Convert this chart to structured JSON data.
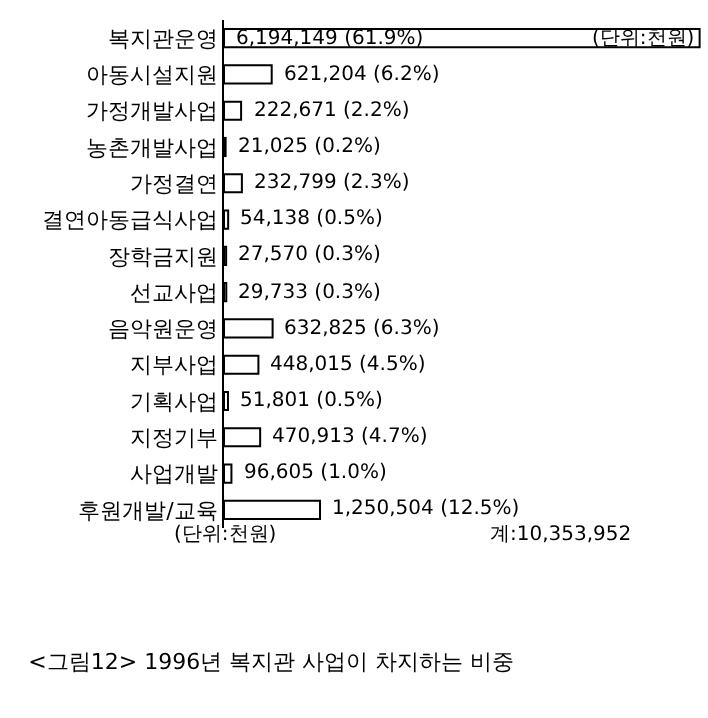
{
  "chart_data": {
    "type": "bar",
    "orientation": "horizontal",
    "title": "<그림12> 1996년 복지관 사업이 차지하는 비중",
    "categories": [
      "복지관운영",
      "아동시설지원",
      "가정개발사업",
      "농촌개발사업",
      "가정결연",
      "결연아동급식사업",
      "장학금지원",
      "선교사업",
      "음악원운영",
      "지부사업",
      "기획사업",
      "지정기부",
      "사업개발",
      "후원개발/교육"
    ],
    "values": [
      6194149,
      621204,
      222671,
      21025,
      232799,
      54138,
      27570,
      29733,
      632825,
      448015,
      51801,
      470913,
      96605,
      1250504
    ],
    "value_labels": [
      "6,194,149 (61.9%)",
      "621,204 (6.2%)",
      "222,671 (2.2%)",
      "21,025 (0.2%)",
      "232,799 (2.3%)",
      "54,138 (0.5%)",
      "27,570 (0.3%)",
      "29,733 (0.3%)",
      "632,825 (6.3%)",
      "448,015 (4.5%)",
      "51,801 (0.5%)",
      "470,913 (4.7%)",
      "96,605 (1.0%)",
      "1,250,504 (12.5%)"
    ],
    "color": "#ffffff",
    "annotations": [
      "(단위:천원)",
      "(단위:천원)",
      "계:10,353,952"
    ],
    "legend": false
  }
}
